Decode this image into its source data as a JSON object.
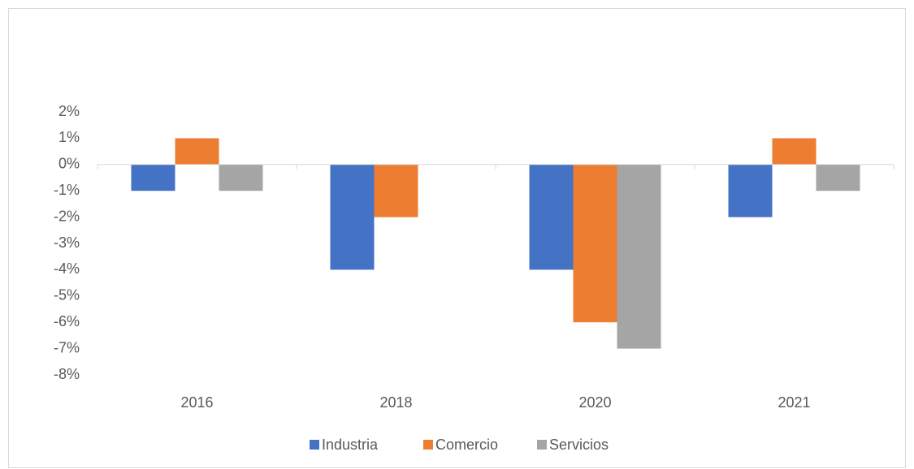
{
  "chart_data": {
    "type": "bar",
    "categories": [
      "2016",
      "2018",
      "2020",
      "2021"
    ],
    "series": [
      {
        "name": "Industria",
        "color": "#4472c4",
        "values": [
          -1,
          -4,
          -4,
          -2
        ]
      },
      {
        "name": "Comercio",
        "color": "#ed7d31",
        "values": [
          1,
          -2,
          -6,
          1
        ]
      },
      {
        "name": "Servicios",
        "color": "#a5a5a5",
        "values": [
          -1,
          0,
          -7,
          -1
        ]
      }
    ],
    "ylim": [
      -8,
      2
    ],
    "yticks": [
      {
        "value": 2,
        "label": "2%"
      },
      {
        "value": 1,
        "label": "1%"
      },
      {
        "value": 0,
        "label": "0%"
      },
      {
        "value": -1,
        "label": "-1%"
      },
      {
        "value": -2,
        "label": "-2%"
      },
      {
        "value": -3,
        "label": "-3%"
      },
      {
        "value": -4,
        "label": "-4%"
      },
      {
        "value": -5,
        "label": "-5%"
      },
      {
        "value": -6,
        "label": "-6%"
      },
      {
        "value": -7,
        "label": "-7%"
      },
      {
        "value": -8,
        "label": "-8%"
      }
    ],
    "grid": false,
    "legend": "bottom"
  }
}
